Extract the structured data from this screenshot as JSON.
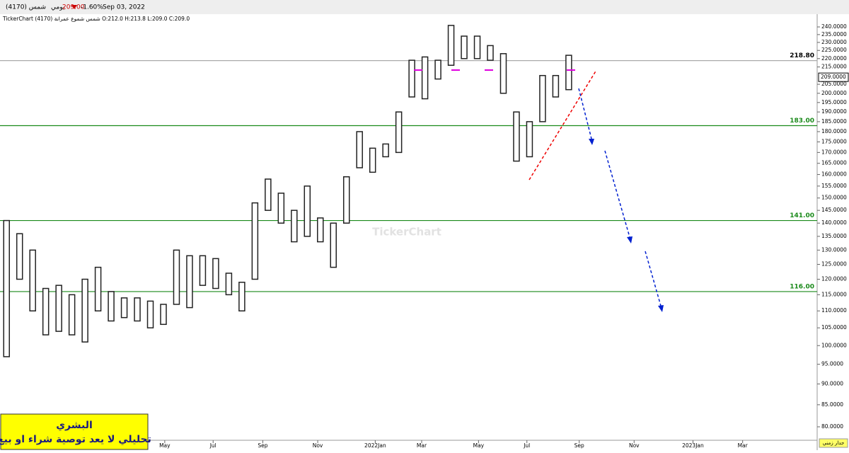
{
  "header": {
    "symbol": "شمس (4170)",
    "period": "يومي",
    "price": "209.00",
    "change": "-1.60%",
    "date": "Sep 03, 2022",
    "info": "TickerChart شمس شموع عمرانة (4170) O:212.0 H:213.8 L:209.0 C:209.0"
  },
  "chart_data": {
    "type": "range-bar",
    "watermark": "TickerChart",
    "log_scale": true,
    "color": "#222222",
    "xlim": [
      -0.5,
      62
    ],
    "xticks": [
      {
        "value": 12.1,
        "label": "May"
      },
      {
        "value": 15.8,
        "label": "Jul"
      },
      {
        "value": 19.6,
        "label": "Sep"
      },
      {
        "value": 23.8,
        "label": "Nov"
      },
      {
        "value": 28.2,
        "label": "2022Jan"
      },
      {
        "value": 31.75,
        "label": "Mar"
      },
      {
        "value": 36.1,
        "label": "May"
      },
      {
        "value": 39.8,
        "label": "Jul"
      },
      {
        "value": 43.8,
        "label": "Sep"
      },
      {
        "value": 48,
        "label": "Nov"
      },
      {
        "value": 52.5,
        "label": "2023Jan"
      },
      {
        "value": 56.3,
        "label": "Mar"
      }
    ],
    "ylim": [
      77.1,
      247.6
    ],
    "yticks": [
      {
        "value": 80,
        "label": "80.0000"
      },
      {
        "value": 85,
        "label": "85.0000"
      },
      {
        "value": 90,
        "label": "90.0000"
      },
      {
        "value": 95,
        "label": "95.0000"
      },
      {
        "value": 100,
        "label": "100.0000"
      },
      {
        "value": 105,
        "label": "105.0000"
      },
      {
        "value": 110,
        "label": "110.0000"
      },
      {
        "value": 115,
        "label": "115.0000"
      },
      {
        "value": 120,
        "label": "120.0000"
      },
      {
        "value": 125,
        "label": "125.0000"
      },
      {
        "value": 130,
        "label": "130.0000"
      },
      {
        "value": 135,
        "label": "135.0000"
      },
      {
        "value": 140,
        "label": "140.0000"
      },
      {
        "value": 145,
        "label": "145.0000"
      },
      {
        "value": 150,
        "label": "150.0000"
      },
      {
        "value": 155,
        "label": "155.0000"
      },
      {
        "value": 160,
        "label": "160.0000"
      },
      {
        "value": 165,
        "label": "165.0000"
      },
      {
        "value": 170,
        "label": "170.0000"
      },
      {
        "value": 175,
        "label": "175.0000"
      },
      {
        "value": 180,
        "label": "180.0000"
      },
      {
        "value": 185,
        "label": "185.0000"
      },
      {
        "value": 190,
        "label": "190.0000"
      },
      {
        "value": 195,
        "label": "195.0000"
      },
      {
        "value": 200,
        "label": "200.0000"
      },
      {
        "value": 205,
        "label": "205.0000"
      },
      {
        "value": 215,
        "label": "215.0000"
      },
      {
        "value": 220,
        "label": "220.0000"
      },
      {
        "value": 225,
        "label": "225.0000"
      },
      {
        "value": 230,
        "label": "230.0000"
      },
      {
        "value": 235,
        "label": "235.0000"
      },
      {
        "value": 240,
        "label": "240.0000"
      }
    ],
    "last_price": {
      "value": 209,
      "label": "209.0000"
    },
    "levels": [
      {
        "value": 218.8,
        "label": "218.80",
        "color": "#aaaaaa"
      },
      {
        "value": 183,
        "label": "183.00",
        "color": "#1a8a1a"
      },
      {
        "value": 141,
        "label": "141.00",
        "color": "#1a8a1a"
      },
      {
        "value": 116,
        "label": "116.00",
        "color": "#1a8a1a"
      }
    ],
    "high": [
      141,
      136,
      130,
      117,
      118,
      115,
      120,
      124,
      116,
      114,
      114,
      113,
      112,
      130,
      128,
      128,
      127,
      122,
      119,
      148,
      158,
      152,
      145,
      155,
      142,
      140,
      159,
      180,
      172,
      174,
      190,
      219,
      221,
      219,
      241,
      234,
      234,
      228,
      223,
      190,
      185,
      210,
      210,
      222
    ],
    "low": [
      97,
      120,
      110,
      103,
      104,
      103,
      101,
      110,
      107,
      108,
      107,
      105,
      106,
      112,
      111,
      118,
      117,
      115,
      110,
      120,
      145,
      140,
      133,
      135,
      133,
      124,
      140,
      163,
      161,
      168,
      170,
      198,
      197,
      208,
      216,
      220,
      220,
      219,
      200,
      166,
      168,
      185,
      198,
      202
    ]
  },
  "note": {
    "name": "البشري",
    "text": "تحليلي لا يعد توصية شراء او بيع"
  },
  "footer": "جدار زمني"
}
